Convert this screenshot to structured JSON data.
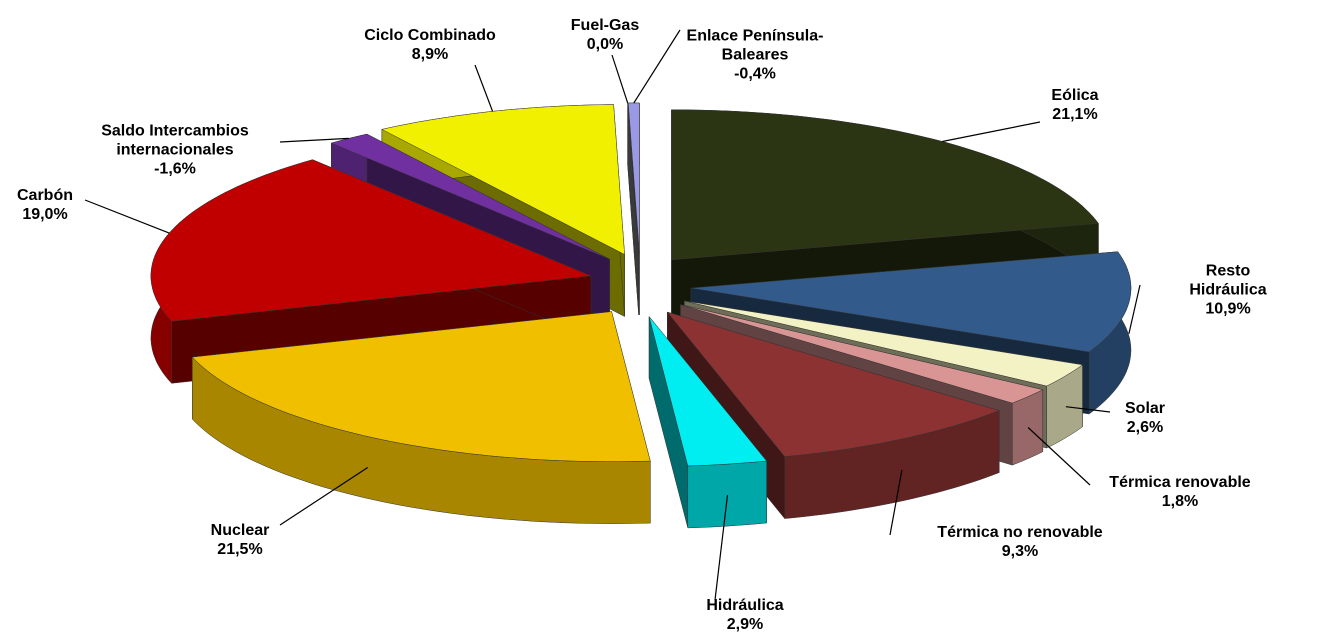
{
  "chart_data": {
    "type": "pie",
    "categories": [
      "Eólica",
      "Resto Hidráulica",
      "Solar",
      "Térmica renovable",
      "Térmica no renovable",
      "Hidráulica",
      "Nuclear",
      "Carbón",
      "Saldo Intercambios\ninternacionales",
      "Ciclo Combinado",
      "Fuel-Gas",
      "Enlace Península-\nBaleares"
    ],
    "values": [
      21.1,
      10.9,
      2.6,
      1.8,
      9.3,
      2.9,
      21.5,
      19.0,
      -1.6,
      8.9,
      0.0,
      -0.4
    ],
    "value_labels": [
      "21,1%",
      "10,9%",
      "2,6%",
      "1,8%",
      "9,3%",
      "2,9%",
      "21,5%",
      "19,0%",
      "-1,6%",
      "8,9%",
      "0,0%",
      "-0,4%"
    ],
    "colors": [
      "#2b3514",
      "#325b8c",
      "#f2f2c4",
      "#d99494",
      "#8c3232",
      "#00eef2",
      "#f0c000",
      "#c00000",
      "#7030a0",
      "#f0f000",
      "#808080",
      "#9999e6"
    ]
  }
}
